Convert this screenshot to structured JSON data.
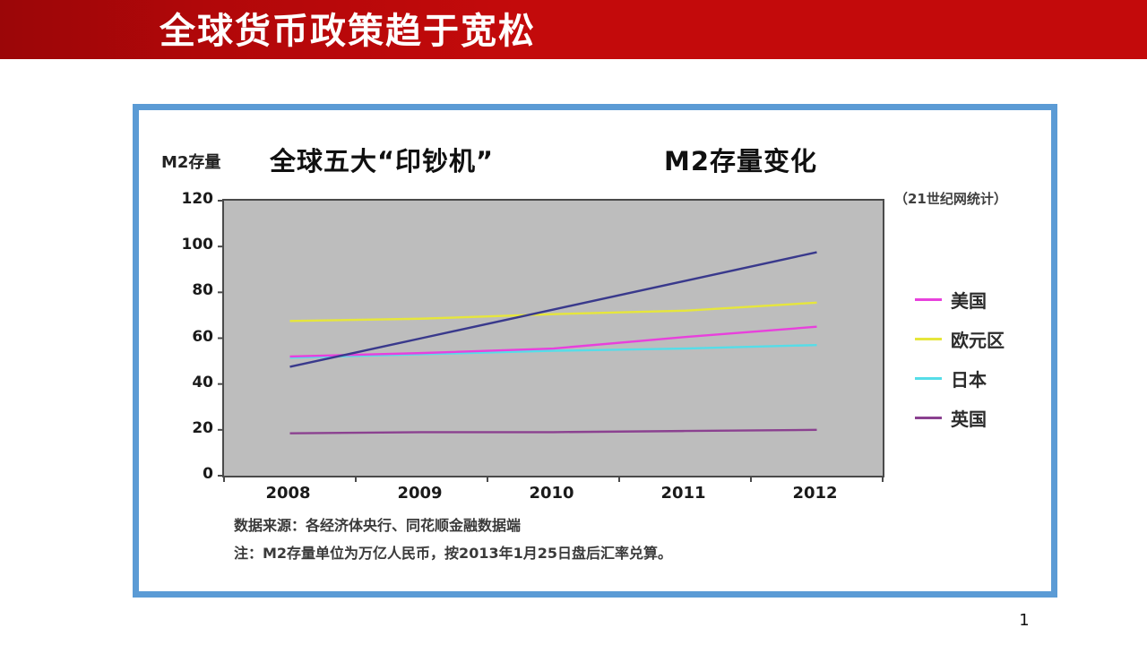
{
  "slide": {
    "header": {
      "title": "全球货币政策趋于宽松"
    },
    "page_number": "1"
  },
  "chart_panel": {
    "border_color": "#5B9BD5",
    "y_axis_title": "M2存量",
    "title_left": "全球五大“印钞机”",
    "title_right": "M2存量变化",
    "source_tag": "（21世纪网统计）",
    "notes": [
      "数据来源：各经济体央行、同花顺金融数据端",
      "注：M2存量单位为万亿人民币，按2013年1月25日盘后汇率兑算。"
    ]
  },
  "chart_data": {
    "type": "line",
    "title": "全球五大“印钞机” M2存量变化",
    "xlabel": "",
    "ylabel": "M2存量",
    "categories": [
      "2008",
      "2009",
      "2010",
      "2011",
      "2012"
    ],
    "series": [
      {
        "name": "美国",
        "color": "#E840DC",
        "values": [
          52,
          53.5,
          55.5,
          60.5,
          65
        ],
        "in_legend": true
      },
      {
        "name": "欧元区",
        "color": "#E6E63C",
        "values": [
          67.5,
          68.5,
          70.5,
          72,
          75.5
        ],
        "in_legend": true
      },
      {
        "name": "日本",
        "color": "#55DDE8",
        "values": [
          51.5,
          53,
          54.5,
          55.5,
          57
        ],
        "in_legend": true
      },
      {
        "name": "英国",
        "color": "#8B4190",
        "values": [
          18.5,
          19,
          19,
          19.5,
          20
        ],
        "in_legend": true
      },
      {
        "name": "unlabeled-navy",
        "color": "#39398C",
        "values": [
          47.5,
          60,
          72.5,
          85,
          97.5
        ],
        "in_legend": false
      }
    ],
    "ylim": [
      0,
      120
    ],
    "yticks": [
      120,
      100,
      80,
      60,
      40,
      20,
      0
    ],
    "plot_bg": "#BDBDBD",
    "grid": false,
    "legend_position": "right"
  }
}
